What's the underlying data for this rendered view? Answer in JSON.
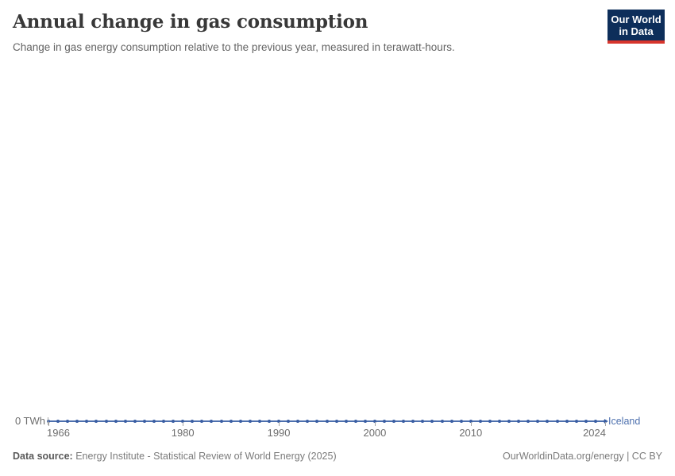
{
  "header": {
    "title": "Annual change in gas consumption",
    "subtitle": "Change in gas energy consumption relative to the previous year, measured in terawatt-hours.",
    "logo": {
      "line1": "Our World",
      "line2": "in Data",
      "bg_color": "#0d2e5a",
      "accent_color": "#d7352c"
    }
  },
  "chart_data": {
    "type": "line",
    "title": "Annual change in gas consumption",
    "subtitle": "Change in gas energy consumption relative to the previous year, measured in terawatt-hours.",
    "unit": "TWh",
    "x": [
      1966,
      1967,
      1968,
      1969,
      1970,
      1971,
      1972,
      1973,
      1974,
      1975,
      1976,
      1977,
      1978,
      1979,
      1980,
      1981,
      1982,
      1983,
      1984,
      1985,
      1986,
      1987,
      1988,
      1989,
      1990,
      1991,
      1992,
      1993,
      1994,
      1995,
      1996,
      1997,
      1998,
      1999,
      2000,
      2001,
      2002,
      2003,
      2004,
      2005,
      2006,
      2007,
      2008,
      2009,
      2010,
      2011,
      2012,
      2013,
      2014,
      2015,
      2016,
      2017,
      2018,
      2019,
      2020,
      2021,
      2022,
      2023,
      2024
    ],
    "series": [
      {
        "name": "Iceland",
        "color": "#4d70ae",
        "dot_color": "#3a5ea3",
        "values": [
          0,
          0,
          0,
          0,
          0,
          0,
          0,
          0,
          0,
          0,
          0,
          0,
          0,
          0,
          0,
          0,
          0,
          0,
          0,
          0,
          0,
          0,
          0,
          0,
          0,
          0,
          0,
          0,
          0,
          0,
          0,
          0,
          0,
          0,
          0,
          0,
          0,
          0,
          0,
          0,
          0,
          0,
          0,
          0,
          0,
          0,
          0,
          0,
          0,
          0,
          0,
          0,
          0,
          0,
          0,
          0,
          0,
          0,
          0
        ]
      }
    ],
    "x_ticks": [
      1966,
      1980,
      1990,
      2000,
      2010,
      2024
    ],
    "x_range": [
      1966,
      2024
    ],
    "y_axis": {
      "labels": [
        "0 TWh"
      ],
      "zero_value": 0
    },
    "grid": "off",
    "legend_position": "right-of-line"
  },
  "footer": {
    "source_label": "Data source:",
    "source_value": "Energy Institute - Statistical Review of World Energy (2025)",
    "right_text": "OurWorldinData.org/energy | CC BY"
  }
}
